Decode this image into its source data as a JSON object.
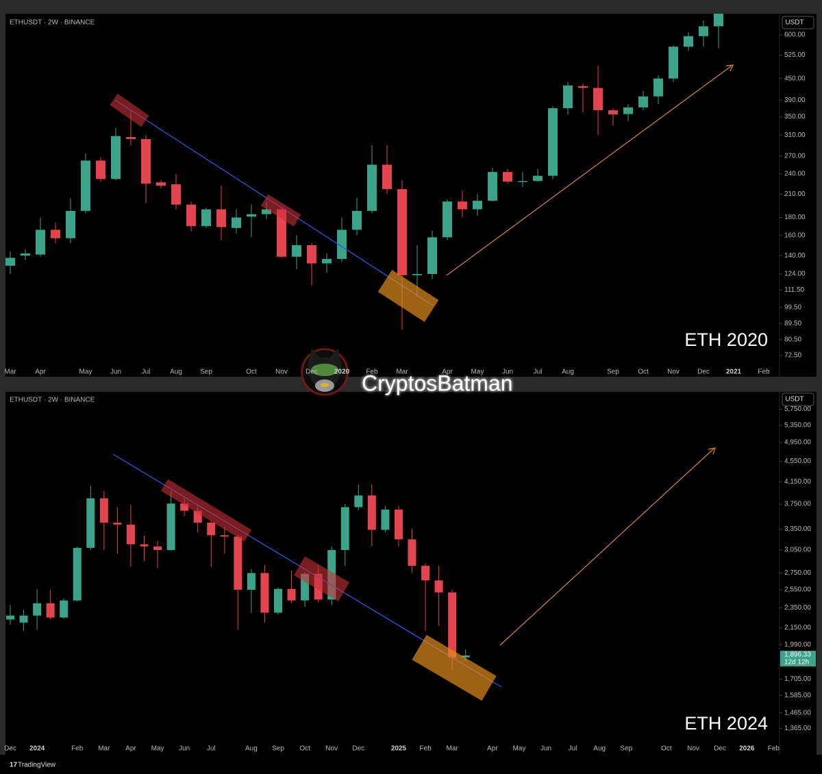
{
  "chart_data": [
    {
      "type": "candlestick",
      "symbol": "ETHUSDT · 2W · BINANCE",
      "currency": "USDT",
      "label": "ETH 2020",
      "log_scale": true,
      "up_color": "#3aa38a",
      "down_color": "#e5434f",
      "categories": [
        "Mar",
        null,
        "Apr",
        null,
        null,
        "May",
        null,
        "Jun",
        null,
        "Jul",
        null,
        "Aug",
        null,
        "Sep",
        null,
        null,
        "Oct",
        null,
        "Nov",
        null,
        "Dec",
        null,
        "2020",
        null,
        "Feb",
        null,
        "Mar",
        null,
        null,
        "Apr",
        null,
        "May",
        null,
        "Jun",
        null,
        "Jul",
        null,
        "Aug",
        null,
        null,
        "Sep",
        null,
        "Oct",
        null,
        "Nov",
        null,
        "Dec",
        null,
        "2021",
        null,
        "Feb"
      ],
      "open": [
        131,
        140,
        141,
        166,
        157,
        188,
        262,
        232,
        306,
        302,
        227,
        224,
        196,
        170,
        190,
        168,
        181,
        184,
        190,
        139,
        150,
        133,
        137,
        166,
        188,
        255,
        217,
        123,
        124,
        158,
        200,
        190,
        201,
        243,
        228,
        229,
        237,
        370,
        428,
        423,
        365,
        356,
        372,
        400,
        450,
        555,
        595,
        635,
        null,
        null,
        null
      ],
      "high": [
        144,
        146,
        180,
        174,
        204,
        275,
        268,
        325,
        365,
        310,
        230,
        240,
        200,
        192,
        222,
        190,
        196,
        200,
        192,
        160,
        152,
        142,
        180,
        205,
        290,
        290,
        230,
        150,
        165,
        203,
        215,
        210,
        250,
        248,
        243,
        248,
        375,
        440,
        435,
        490,
        370,
        380,
        415,
        460,
        560,
        610,
        660,
        720,
        null,
        null,
        null
      ],
      "low": [
        124,
        136,
        139,
        152,
        152,
        185,
        228,
        230,
        290,
        198,
        218,
        190,
        164,
        168,
        155,
        162,
        158,
        178,
        138,
        128,
        115,
        125,
        134,
        160,
        185,
        210,
        86,
        107,
        120,
        155,
        180,
        182,
        200,
        225,
        220,
        228,
        232,
        355,
        360,
        310,
        330,
        340,
        365,
        380,
        440,
        540,
        555,
        550,
        null,
        null,
        null
      ],
      "close": [
        138,
        142,
        166,
        157,
        188,
        262,
        232,
        308,
        302,
        225,
        222,
        196,
        170,
        190,
        169,
        180,
        184,
        190,
        139,
        150,
        133,
        137,
        166,
        188,
        255,
        217,
        123,
        124,
        158,
        200,
        190,
        201,
        243,
        228,
        229,
        237,
        370,
        430,
        423,
        365,
        355,
        372,
        400,
        450,
        555,
        595,
        635,
        700,
        null,
        null,
        null
      ],
      "ylim": [
        63,
        690
      ],
      "yticks": [
        {
          "value": 600,
          "label": "600.00"
        },
        {
          "value": 525,
          "label": "525.00"
        },
        {
          "value": 450,
          "label": "450.00"
        },
        {
          "value": 390,
          "label": "390.00"
        },
        {
          "value": 350,
          "label": "350.00"
        },
        {
          "value": 310,
          "label": "310.00"
        },
        {
          "value": 270,
          "label": "270.00"
        },
        {
          "value": 240,
          "label": "240.00"
        },
        {
          "value": 210,
          "label": "210.00"
        },
        {
          "value": 180,
          "label": "180.00"
        },
        {
          "value": 160,
          "label": "160.00"
        },
        {
          "value": 140,
          "label": "140.00"
        },
        {
          "value": 124,
          "label": "124.00"
        },
        {
          "value": 111.5,
          "label": "111.50"
        },
        {
          "value": 99.5,
          "label": "99.50"
        },
        {
          "value": 89.5,
          "label": "89.50"
        },
        {
          "value": 80.5,
          "label": "80.50"
        },
        {
          "value": 72.5,
          "label": "72.50"
        }
      ]
    },
    {
      "type": "candlestick",
      "symbol": "ETHUSDT · 2W · BINANCE",
      "currency": "USDT",
      "label": "ETH 2024",
      "log_scale": true,
      "up_color": "#3aa38a",
      "down_color": "#e5434f",
      "categories": [
        "Dec",
        null,
        "2024",
        null,
        null,
        "Feb",
        null,
        "Mar",
        null,
        "Apr",
        null,
        "May",
        null,
        "Jun",
        null,
        "Jul",
        null,
        null,
        "Aug",
        null,
        "Sep",
        null,
        "Oct",
        null,
        "Nov",
        null,
        "Dec",
        null,
        null,
        "2025",
        null,
        "Feb",
        null,
        "Mar",
        null,
        null,
        "Apr",
        null,
        "May",
        null,
        "Jun",
        null,
        "Jul",
        null,
        "Aug",
        null,
        "Sep",
        null,
        null,
        "Oct",
        null,
        "Nov",
        null,
        "Dec",
        null,
        "2026",
        null,
        "Feb"
      ],
      "open": [
        2230,
        2200,
        2270,
        2400,
        2250,
        2430,
        3080,
        3850,
        3450,
        3420,
        3130,
        3100,
        3050,
        3760,
        3640,
        3450,
        3260,
        3240,
        2550,
        2750,
        2300,
        2560,
        2430,
        2740,
        2440,
        3050,
        3700,
        3900,
        3340,
        3660,
        3200,
        2840,
        2660,
        2520,
        1880,
        null,
        null,
        null,
        null,
        null,
        null,
        null,
        null,
        null,
        null,
        null,
        null,
        null,
        null,
        null,
        null,
        null,
        null,
        null,
        null,
        null,
        null,
        null
      ],
      "high": [
        2380,
        2330,
        2560,
        2550,
        2450,
        3100,
        4070,
        3980,
        3700,
        3740,
        3250,
        3180,
        3980,
        3850,
        3720,
        3480,
        3380,
        3270,
        2800,
        2850,
        2580,
        2780,
        2760,
        2850,
        3100,
        3750,
        4100,
        4100,
        3720,
        3720,
        3360,
        2870,
        2840,
        2550,
        1950,
        null,
        null,
        null,
        null,
        null,
        null,
        null,
        null,
        null,
        null,
        null,
        null,
        null,
        null,
        null,
        null,
        null,
        null,
        null,
        null,
        null,
        null,
        null
      ],
      "low": [
        2180,
        2120,
        2130,
        2230,
        2240,
        2420,
        3050,
        3050,
        3000,
        2830,
        2900,
        2810,
        3040,
        3550,
        3300,
        2830,
        3000,
        2130,
        2300,
        2200,
        2280,
        2400,
        2360,
        2410,
        2380,
        2840,
        3650,
        3100,
        3300,
        3100,
        2750,
        2120,
        2170,
        1780,
        1850,
        null,
        null,
        null,
        null,
        null,
        null,
        null,
        null,
        null,
        null,
        null,
        null,
        null,
        null,
        null,
        null,
        null,
        null,
        null,
        null,
        null,
        null,
        null
      ],
      "close": [
        2270,
        2270,
        2400,
        2250,
        2430,
        3080,
        3850,
        3450,
        3420,
        3130,
        3100,
        3050,
        3760,
        3640,
        3450,
        3260,
        3240,
        2550,
        2750,
        2300,
        2560,
        2430,
        2740,
        2440,
        3050,
        3700,
        3900,
        3340,
        3660,
        3200,
        2840,
        2660,
        2520,
        1880,
        1896.33,
        null,
        null,
        null,
        null,
        null,
        null,
        null,
        null,
        null,
        null,
        null,
        null,
        null,
        null,
        null,
        null,
        null,
        null,
        null,
        null,
        null,
        null,
        null
      ],
      "last_price": {
        "value": 1896.33,
        "label": "1,896.33"
      },
      "countdown": "12d 12h",
      "ylim": [
        1220,
        6220
      ],
      "yticks": [
        {
          "value": 5750,
          "label": "5,750.00"
        },
        {
          "value": 5350,
          "label": "5,350.00"
        },
        {
          "value": 4950,
          "label": "4,950.00"
        },
        {
          "value": 4550,
          "label": "4,550.00"
        },
        {
          "value": 4150,
          "label": "4,150.00"
        },
        {
          "value": 3750,
          "label": "3,750.00"
        },
        {
          "value": 3350,
          "label": "3,350.00"
        },
        {
          "value": 3050,
          "label": "3,050.00"
        },
        {
          "value": 2750,
          "label": "2,750.00"
        },
        {
          "value": 2550,
          "label": "2,550.00"
        },
        {
          "value": 2350,
          "label": "2,350.00"
        },
        {
          "value": 2150,
          "label": "2,150.00"
        },
        {
          "value": 1990,
          "label": "1,990.00"
        },
        {
          "value": 1705,
          "label": "1,705.00"
        },
        {
          "value": 1585,
          "label": "1,585.00"
        },
        {
          "value": 1465,
          "label": "1,465.00"
        },
        {
          "value": 1365,
          "label": "1,365.00"
        }
      ]
    }
  ],
  "watermark": "CryptosBatman",
  "footer": "TradingView"
}
